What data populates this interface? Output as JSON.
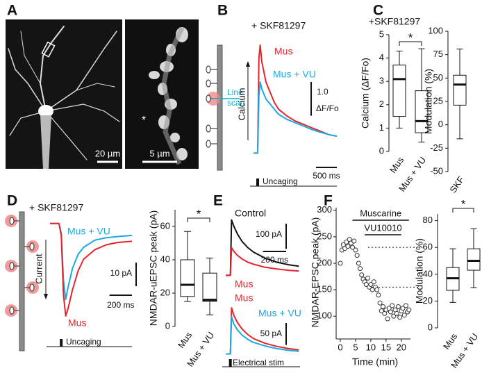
{
  "panel_labels": [
    "A",
    "B",
    "C",
    "D",
    "E",
    "F"
  ],
  "panel_a": {
    "scale_bar_left": "20 µm",
    "scale_bar_right": "5 µm",
    "marker": "*"
  },
  "panel_b_diagram": {
    "line_scan": [
      "Line",
      "scan"
    ]
  },
  "chart_data": [
    {
      "type": "line",
      "title": "+ SKF81297",
      "y_label": "Calcium",
      "x": [
        -100,
        0,
        30,
        60,
        100,
        200,
        300,
        400,
        500,
        700,
        900,
        1100,
        1300,
        1500,
        1700,
        1900
      ],
      "series": [
        {
          "name": "Mus",
          "color": "#e4242b",
          "values": [
            0,
            0,
            2.8,
            3.2,
            2.7,
            2.1,
            1.8,
            1.5,
            1.3,
            1.1,
            0.95,
            0.85,
            0.75,
            0.65,
            0.55,
            0.5
          ]
        },
        {
          "name": "Mus + VU",
          "color": "#1ba9e1",
          "values": [
            0,
            0,
            1.7,
            2.1,
            1.9,
            1.6,
            1.45,
            1.3,
            1.15,
            1.0,
            0.9,
            0.8,
            0.7,
            0.62,
            0.55,
            0.5
          ]
        }
      ],
      "xlim": [
        -100,
        1900
      ],
      "ylim": [
        -0.3,
        3.3
      ],
      "scale_bars": {
        "y": {
          "value": 1.0,
          "label": "1.0",
          "unit": "ΔF/Fo"
        },
        "x": {
          "value": 500,
          "label": "500 ms"
        }
      },
      "stim": {
        "label": "Uncaging",
        "time": 0
      }
    },
    {
      "type": "box",
      "title": "+SKF81297",
      "y_label": "Calcium (ΔF/Fo)",
      "categories": [
        "Mus",
        "Mus + VU"
      ],
      "boxes": [
        {
          "min": 1.0,
          "q1": 1.5,
          "median": 3.1,
          "q3": 3.7,
          "max": 4.3
        },
        {
          "min": 0.4,
          "q1": 0.8,
          "median": 1.3,
          "q3": 2.6,
          "max": 4.4
        }
      ],
      "ylim": [
        0,
        5
      ],
      "yticks": [
        0,
        1,
        2,
        3,
        4,
        5
      ],
      "significance": "*"
    },
    {
      "type": "box",
      "y_label": "Modulation (%)",
      "categories": [
        "SKF"
      ],
      "boxes": [
        {
          "min": -15,
          "q1": 21,
          "median": 43,
          "q3": 53,
          "max": 81
        }
      ],
      "ylim": [
        -50,
        100
      ],
      "yticks": [
        -50,
        -25,
        0,
        25,
        50,
        75,
        100
      ]
    },
    {
      "type": "line",
      "title": "+ SKF81297",
      "y_label": "Current",
      "x": [
        -100,
        -20,
        0,
        20,
        40,
        60,
        100,
        150,
        200,
        300,
        400,
        500,
        630
      ],
      "series": [
        {
          "name": "Mus + VU",
          "color": "#1ba9e1",
          "values": [
            0,
            0,
            -4,
            -24,
            -32,
            -27,
            -19,
            -13,
            -10,
            -7,
            -6,
            -5.5,
            -5
          ]
        },
        {
          "name": "Mus",
          "color": "#e4242b",
          "values": [
            0,
            0,
            -5,
            -30,
            -39,
            -36,
            -28,
            -20,
            -15,
            -11,
            -9,
            -8,
            -7.5
          ]
        }
      ],
      "xlim": [
        -100,
        630
      ],
      "ylim": [
        -40.5,
        2
      ],
      "scale_bars": {
        "y": {
          "value": 10,
          "label": "10 pA"
        },
        "x": {
          "value": 200,
          "label": "200 ms"
        }
      },
      "stim": {
        "label": "Uncaging",
        "time": 0
      }
    },
    {
      "type": "box",
      "y_label": "NMDAR-uEPSC peak (pA)",
      "categories": [
        "Mus",
        "Mus + VU"
      ],
      "boxes": [
        {
          "min": 15,
          "q1": 18,
          "median": 25,
          "q3": 40,
          "max": 57
        },
        {
          "min": 7,
          "q1": 15,
          "median": 16,
          "q3": 32,
          "max": 41
        }
      ],
      "ylim": [
        0,
        70
      ],
      "yticks": [
        0,
        20,
        40,
        60
      ],
      "significance": "*"
    },
    {
      "type": "line",
      "x": [
        -40,
        0,
        10,
        30,
        60,
        100,
        150,
        200,
        300,
        400,
        500,
        590
      ],
      "series": [
        {
          "name": "Control",
          "color": "#111111",
          "values": [
            0,
            0,
            220,
            195,
            165,
            135,
            110,
            92,
            68,
            52,
            42,
            36
          ]
        },
        {
          "name": "Mus",
          "color": "#e4242b",
          "values": [
            0,
            0,
            110,
            95,
            80,
            65,
            52,
            44,
            32,
            25,
            20,
            17
          ]
        }
      ],
      "xlim": [
        -40,
        600
      ],
      "ylim": [
        -10,
        230
      ],
      "scale_bars": {
        "y": {
          "value": 100,
          "label": "100 pA"
        },
        "x": {
          "value": 200,
          "label": "200 ms"
        }
      }
    },
    {
      "type": "line",
      "x": [
        -40,
        0,
        10,
        30,
        60,
        100,
        150,
        200,
        300,
        400,
        500,
        590
      ],
      "series": [
        {
          "name": "Mus",
          "color": "#e4242b",
          "values": [
            0,
            0,
            105,
            88,
            72,
            57,
            44,
            35,
            24,
            17,
            12,
            9
          ]
        },
        {
          "name": "Mus + VU",
          "color": "#1ba9e1",
          "values": [
            0,
            0,
            85,
            68,
            55,
            43,
            33,
            26,
            18,
            12,
            8,
            6
          ]
        }
      ],
      "xlim": [
        -40,
        600
      ],
      "ylim": [
        -4,
        110
      ],
      "scale_bars": {
        "y": {
          "value": 50,
          "label": "50 pA"
        }
      },
      "stim": {
        "label": "Electrical stim",
        "time": 0
      }
    },
    {
      "type": "scatter",
      "y_label": "NMDAR-EPSC peak (pA)",
      "x_label": "Time (min)",
      "x": [
        0,
        0.5,
        1,
        1.5,
        2,
        2.5,
        3,
        3.5,
        4,
        4.5,
        5,
        5.5,
        6,
        6.5,
        7,
        7.5,
        8,
        8.5,
        9,
        9.5,
        10,
        10.5,
        11,
        11.5,
        12,
        12.5,
        13,
        13.5,
        14,
        14.5,
        15,
        15.5,
        16,
        16.5,
        17,
        17.5,
        18,
        18.5,
        19,
        19.5,
        20,
        20.5,
        21,
        21.5,
        22,
        22.5
      ],
      "values": [
        200,
        225,
        235,
        228,
        240,
        232,
        245,
        238,
        230,
        242,
        225,
        215,
        200,
        190,
        178,
        170,
        165,
        160,
        172,
        155,
        160,
        150,
        165,
        155,
        150,
        140,
        125,
        110,
        118,
        105,
        112,
        95,
        115,
        108,
        120,
        100,
        112,
        105,
        118,
        98,
        110,
        115,
        102,
        120,
        108,
        112
      ],
      "xlim": [
        0,
        23
      ],
      "ylim": [
        57,
        305
      ],
      "xticks": [
        0,
        5,
        10,
        15,
        20
      ],
      "yticks": [
        100,
        150,
        200,
        250,
        300
      ],
      "reference_lines": [
        230,
        155
      ],
      "treatments": [
        {
          "label": "Muscarine",
          "start": 4,
          "end": 22.5
        },
        {
          "label": "VU10010",
          "start": 8,
          "end": 20
        }
      ]
    },
    {
      "type": "box",
      "y_label": "Modulation (%)",
      "categories": [
        "Mus",
        "Mus + VU"
      ],
      "boxes": [
        {
          "min": 19,
          "q1": 28,
          "median": 37,
          "q3": 45,
          "max": 59
        },
        {
          "min": 30,
          "q1": 43,
          "median": 50,
          "q3": 59,
          "max": 74
        }
      ],
      "ylim": [
        0,
        85
      ],
      "yticks": [
        0,
        20,
        40,
        60,
        80
      ],
      "significance": "*"
    }
  ]
}
